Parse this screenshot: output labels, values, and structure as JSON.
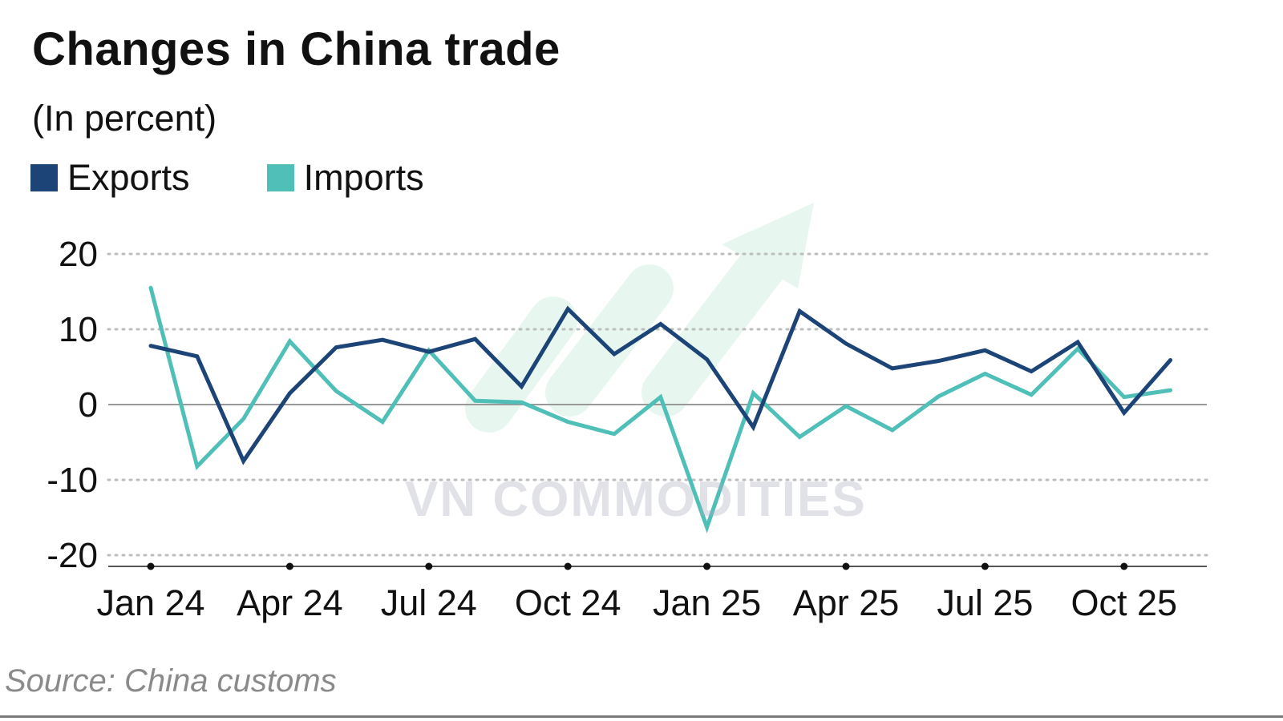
{
  "title": "Changes in China trade",
  "subtitle": "(In percent)",
  "source": "Source: China customs",
  "watermark": "VN COMMODITIES",
  "colors": {
    "exports": "#1d4477",
    "imports": "#4fbfb8",
    "grid": "#bdbdbd",
    "zero": "#999999"
  },
  "chart_data": {
    "type": "line",
    "title": "Changes in China trade",
    "ylabel": "(In percent)",
    "ylim": [
      -20,
      20
    ],
    "yticks": [
      "20",
      "10",
      "0",
      "-10",
      "-20"
    ],
    "grid": true,
    "legend": "top-left",
    "x_tick_labels": [
      "Jan 24",
      "Apr 24",
      "Jul 24",
      "Oct 24",
      "Jan 25",
      "Apr 25",
      "Jul 25",
      "Oct 25"
    ],
    "x": [
      "Jan 24",
      "Feb 24",
      "Mar 24",
      "Apr 24",
      "May 24",
      "Jun 24",
      "Jul 24",
      "Aug 24",
      "Sep 24",
      "Oct 24",
      "Nov 24",
      "Dec 24",
      "Jan 25",
      "Feb 25",
      "Mar 25",
      "Apr 25",
      "May 25",
      "Jun 25",
      "Jul 25",
      "Aug 25",
      "Sep 25",
      "Oct 25",
      "Nov 25"
    ],
    "series": [
      {
        "name": "Exports",
        "values": [
          7.8,
          6.4,
          -7.5,
          1.5,
          7.6,
          8.6,
          7.0,
          8.7,
          2.4,
          12.7,
          6.7,
          10.7,
          6.0,
          -3.0,
          12.4,
          8.1,
          4.8,
          5.8,
          7.2,
          4.4,
          8.3,
          -1.1,
          5.9
        ]
      },
      {
        "name": "Imports",
        "values": [
          15.5,
          -8.2,
          -1.9,
          8.4,
          1.8,
          -2.3,
          7.2,
          0.5,
          0.3,
          -2.3,
          -3.9,
          1.0,
          -16.3,
          1.5,
          -4.3,
          -0.2,
          -3.4,
          1.1,
          4.1,
          1.3,
          7.4,
          1.0,
          1.9
        ]
      }
    ]
  },
  "legend": {
    "exports_label": "Exports",
    "imports_label": "Imports"
  }
}
